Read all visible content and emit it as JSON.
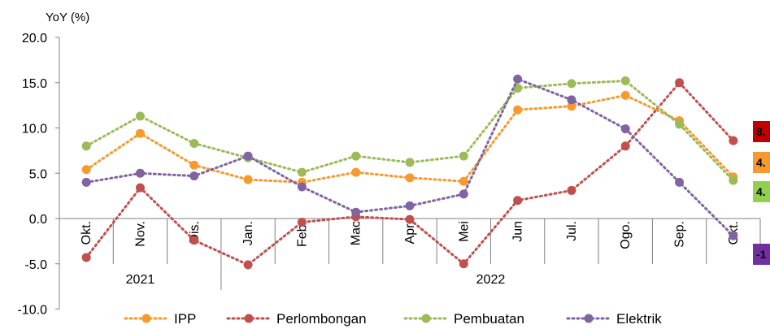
{
  "chart_data": {
    "type": "line",
    "ylabel": "YoY (%)",
    "xlabel": "",
    "title": "",
    "ylim": [
      -10,
      20
    ],
    "yticks": [
      "20.0",
      "15.0",
      "10.0",
      "5.0",
      "0.0",
      "-5.0",
      "-10.0"
    ],
    "categories": [
      "Okt.",
      "Nov.",
      "Dis.",
      "Jan.",
      "Feb.",
      "Mac",
      "Apr.",
      "Mei",
      "Jun",
      "Jul.",
      "Ogo.",
      "Sep.",
      "Okt."
    ],
    "year_groups": [
      {
        "label": "2021",
        "start": 0,
        "end": 2
      },
      {
        "label": "2022",
        "start": 3,
        "end": 12
      }
    ],
    "grid": false,
    "legend_position": "bottom",
    "series": [
      {
        "name": "IPP",
        "color": "#F79A2E",
        "values": [
          5.4,
          9.4,
          5.9,
          4.3,
          4.0,
          5.1,
          4.5,
          4.1,
          12.0,
          12.4,
          13.6,
          10.8,
          4.6
        ],
        "end_label": "4.",
        "badge_color": "#F79A2E"
      },
      {
        "name": "Perlombongan",
        "color": "#C0504D",
        "values": [
          -4.3,
          3.4,
          -2.4,
          -5.1,
          -0.4,
          0.2,
          -0.1,
          -5.0,
          2.0,
          3.1,
          8.0,
          15.0,
          8.6
        ],
        "end_label": "8.",
        "badge_color": "#C00000"
      },
      {
        "name": "Pembuatan",
        "color": "#9BBB59",
        "values": [
          8.0,
          11.3,
          8.3,
          6.7,
          5.1,
          6.9,
          6.2,
          6.9,
          14.4,
          14.9,
          15.2,
          10.4,
          4.2
        ],
        "end_label": "4.",
        "badge_color": "#92D050"
      },
      {
        "name": "Elektrik",
        "color": "#8064A2",
        "values": [
          4.0,
          5.0,
          4.7,
          6.9,
          3.5,
          0.7,
          1.4,
          2.7,
          15.4,
          13.1,
          9.9,
          4.0,
          -1.9
        ],
        "end_label": "-1",
        "badge_color": "#7030A0"
      }
    ]
  }
}
